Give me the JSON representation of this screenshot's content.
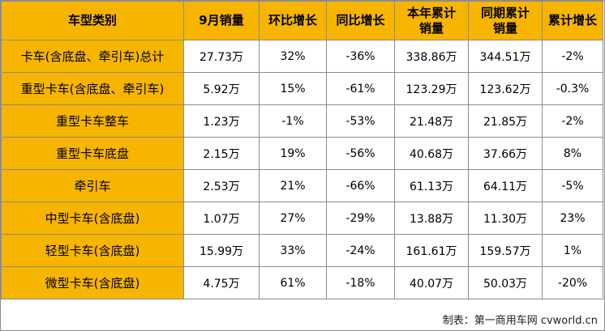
{
  "table": {
    "headers": {
      "category": "车型类别",
      "sept_sales": "9月销量",
      "mom_growth": "环比增长",
      "yoy_growth": "同比增长",
      "ytd_sales_line1": "本年累计",
      "ytd_sales_line2": "销量",
      "prev_ytd_sales_line1": "同期累计",
      "prev_ytd_sales_line2": "销量",
      "cumulative_growth": "累计增长"
    },
    "rows": [
      {
        "category": "卡车(含底盘、牵引车)总计",
        "sept_sales": "27.73万",
        "mom_growth": "32%",
        "yoy_growth": "-36%",
        "ytd_sales": "338.86万",
        "prev_ytd_sales": "344.51万",
        "cumulative_growth": "-2%"
      },
      {
        "category": "重型卡车(含底盘、牵引车)",
        "sept_sales": "5.92万",
        "mom_growth": "15%",
        "yoy_growth": "-61%",
        "ytd_sales": "123.29万",
        "prev_ytd_sales": "123.62万",
        "cumulative_growth": "-0.3%"
      },
      {
        "category": "重型卡车整车",
        "sept_sales": "1.23万",
        "mom_growth": "-1%",
        "yoy_growth": "-53%",
        "ytd_sales": "21.48万",
        "prev_ytd_sales": "21.85万",
        "cumulative_growth": "-2%"
      },
      {
        "category": "重型卡车底盘",
        "sept_sales": "2.15万",
        "mom_growth": "19%",
        "yoy_growth": "-56%",
        "ytd_sales": "40.68万",
        "prev_ytd_sales": "37.66万",
        "cumulative_growth": "8%"
      },
      {
        "category": "牵引车",
        "sept_sales": "2.53万",
        "mom_growth": "21%",
        "yoy_growth": "-66%",
        "ytd_sales": "61.13万",
        "prev_ytd_sales": "64.11万",
        "cumulative_growth": "-5%"
      },
      {
        "category": "中型卡车(含底盘)",
        "sept_sales": "1.07万",
        "mom_growth": "27%",
        "yoy_growth": "-29%",
        "ytd_sales": "13.88万",
        "prev_ytd_sales": "11.30万",
        "cumulative_growth": "23%"
      },
      {
        "category": "轻型卡车(含底盘)",
        "sept_sales": "15.99万",
        "mom_growth": "33%",
        "yoy_growth": "-24%",
        "ytd_sales": "161.61万",
        "prev_ytd_sales": "159.57万",
        "cumulative_growth": "1%"
      },
      {
        "category": "微型卡车(含底盘)",
        "sept_sales": "4.75万",
        "mom_growth": "61%",
        "yoy_growth": "-18%",
        "ytd_sales": "40.07万",
        "prev_ytd_sales": "50.03万",
        "cumulative_growth": "-20%"
      }
    ]
  },
  "footer": {
    "credit": "制表：第一商用车网 cvworld.cn"
  },
  "colors": {
    "header_fill": "#f7b500",
    "category_fill": "#f7b500",
    "border": "#8c8c8c"
  }
}
